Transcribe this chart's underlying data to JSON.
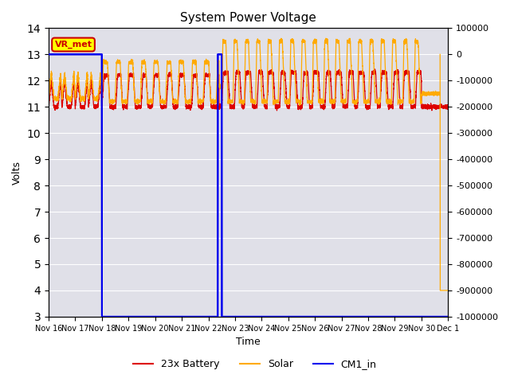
{
  "title": "System Power Voltage",
  "xlabel": "Time",
  "ylabel_left": "Volts",
  "ylim_left": [
    3.0,
    14.0
  ],
  "ylim_right": [
    -1000000,
    100000
  ],
  "yticks_left": [
    3.0,
    4.0,
    5.0,
    6.0,
    7.0,
    8.0,
    9.0,
    10.0,
    11.0,
    12.0,
    13.0,
    14.0
  ],
  "yticks_right": [
    -1000000,
    -900000,
    -800000,
    -700000,
    -600000,
    -500000,
    -400000,
    -300000,
    -200000,
    -100000,
    0,
    100000
  ],
  "bg_color": "#e0e0e8",
  "annotation_text": "VR_met",
  "annotation_color": "#cc0000",
  "annotation_bg": "#ffff00",
  "colors": {
    "battery": "#dd0000",
    "solar": "#ffaa00",
    "cm1": "#0000ee"
  },
  "legend_labels": [
    "23x Battery",
    "Solar",
    "CM1_in"
  ],
  "date_labels": [
    "Nov 16",
    "Nov 17",
    "Nov 18",
    "Nov 19",
    "Nov 20",
    "Nov 21",
    "Nov 22",
    "Nov 23",
    "Nov 24",
    "Nov 25",
    "Nov 26",
    "Nov 27",
    "Nov 28",
    "Nov 29",
    "Nov 30",
    "Dec 1"
  ]
}
